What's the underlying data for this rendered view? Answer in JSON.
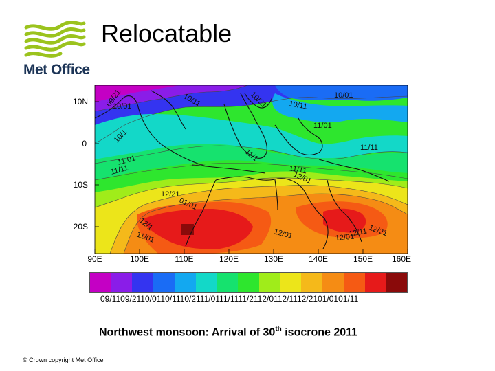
{
  "slide": {
    "title": "Relocatable",
    "logo_text": "Met Office",
    "caption_pre": "Northwest monsoon: Arrival of 30",
    "caption_sup": "th",
    "caption_post": " isocrone 2011",
    "copyright": "© Crown copyright   Met Office",
    "logo_color": "#9bc31d"
  },
  "map": {
    "lat_labels": [
      "10N",
      "0",
      "10S",
      "20S"
    ],
    "lon_labels": [
      "90E",
      "100E",
      "110E",
      "120E",
      "130E",
      "140E",
      "150E",
      "160E"
    ],
    "contour_labels": [
      "09/21",
      "10/01",
      "10/11",
      "10/21",
      "10/11",
      "10/01",
      "11/01",
      "10/1",
      "11/11",
      "11/01",
      "11/11",
      "11/1",
      "11/11",
      "12/01",
      "12/21",
      "01/01",
      "12/1",
      "11/01",
      "12/01",
      "12/11",
      "12/21",
      "12/01"
    ],
    "colorbar": {
      "colors": [
        "#c400c4",
        "#8a1de8",
        "#3434f0",
        "#1a6cf5",
        "#13a8f0",
        "#13d8c8",
        "#16e26e",
        "#2ee62e",
        "#a0ec1a",
        "#ece51a",
        "#f5b91a",
        "#f58c14",
        "#f55a14",
        "#e61a1a",
        "#8a0a0a"
      ],
      "labels": "09/1109/2110/0110/1110/2111/0111/1111/2112/0112/1112/2101/0101/11"
    }
  }
}
